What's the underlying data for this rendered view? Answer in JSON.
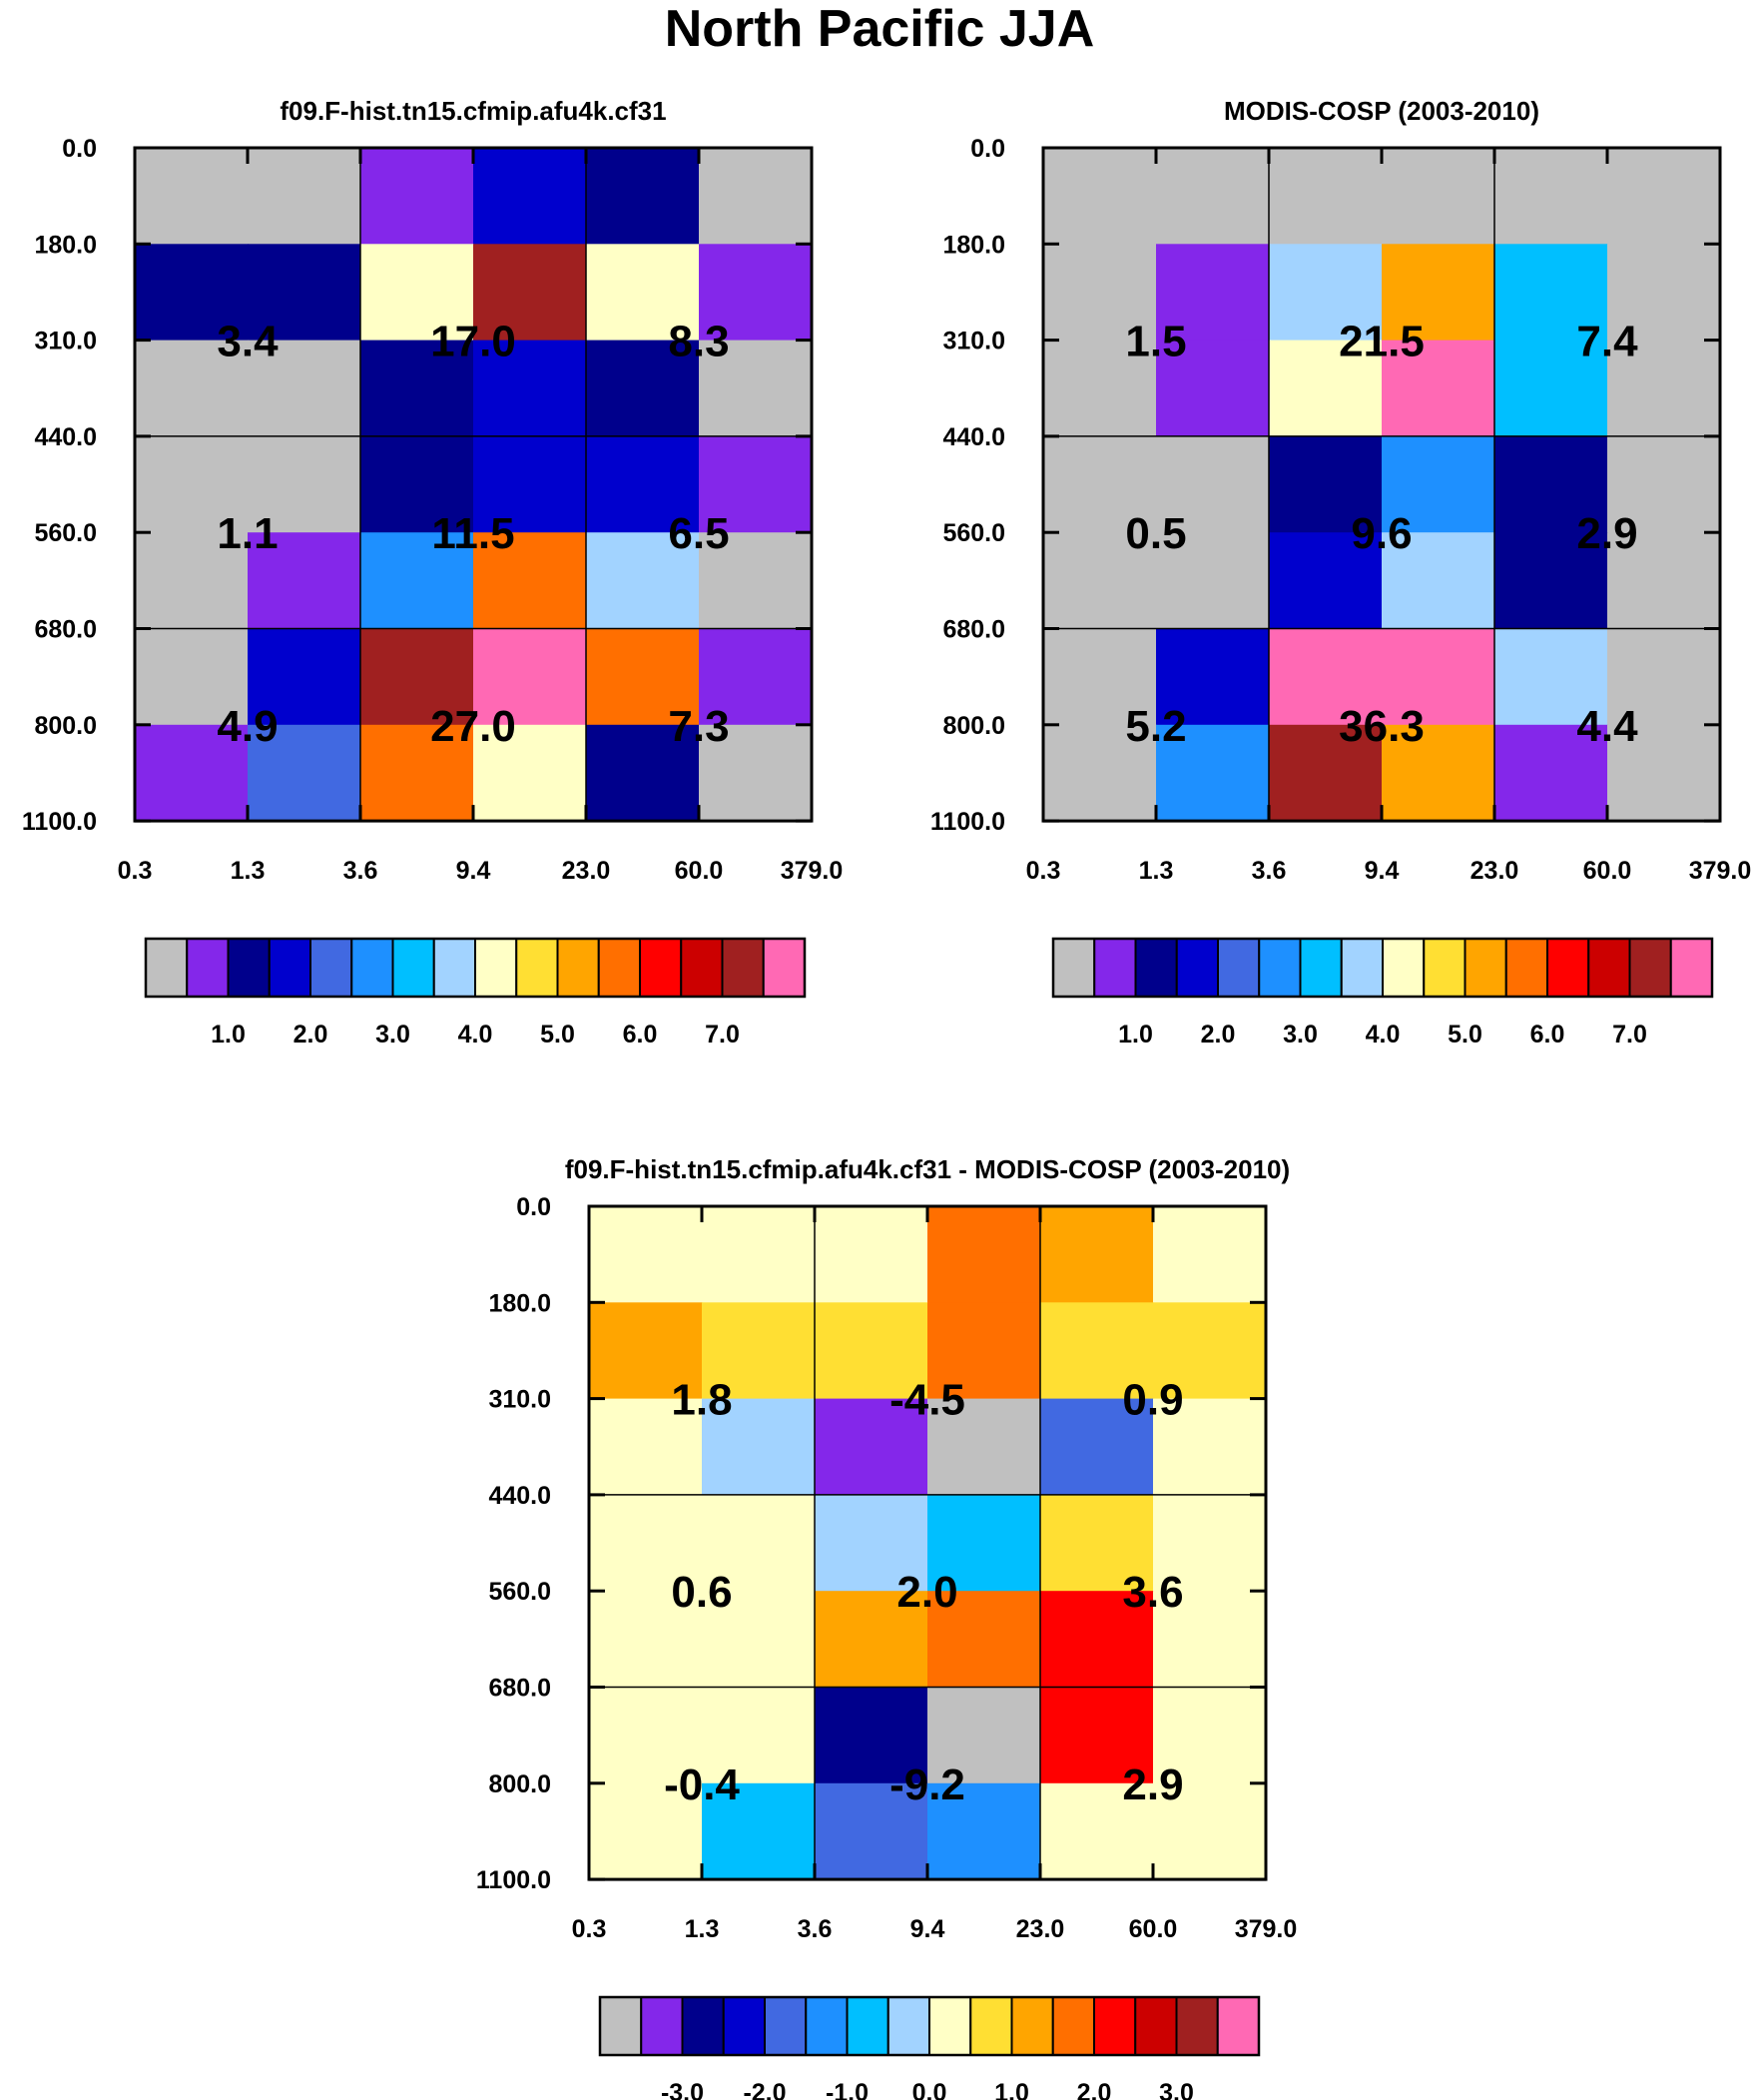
{
  "page_title": "North Pacific JJA",
  "x_tick_labels": [
    "0.3",
    "1.3",
    "3.6",
    "9.4",
    "23.0",
    "60.0",
    "379.0"
  ],
  "y_tick_labels": [
    "0.0",
    "180.0",
    "310.0",
    "440.0",
    "560.0",
    "680.0",
    "800.0",
    "1100.0"
  ],
  "colors": {
    "abs_palette": [
      "#c0c0c0",
      "#8427ea",
      "#00008c",
      "#0000cd",
      "#4169e1",
      "#1e90ff",
      "#00bfff",
      "#a2d3ff",
      "#ffffc6",
      "#ffdf33",
      "#ffa500",
      "#ff6f00",
      "#ff0000",
      "#cc0000",
      "#a02020",
      "#ff69b4"
    ],
    "diff_palette": [
      "#c0c0c0",
      "#8427ea",
      "#00008c",
      "#0000cd",
      "#4169e1",
      "#1e90ff",
      "#00bfff",
      "#a2d3ff",
      "#ffffc6",
      "#ffdf33",
      "#ffa500",
      "#ff6f00",
      "#ff0000",
      "#cc0000",
      "#a02020",
      "#ff69b4"
    ]
  },
  "chart_data": [
    {
      "type": "heatmap",
      "title": "f09.F-hist.tn15.cfmip.afu4k.cf31",
      "x_bins": [
        "0.3",
        "1.3",
        "3.6",
        "9.4",
        "23.0",
        "60.0",
        "379.0"
      ],
      "y_bins": [
        "0.0",
        "180.0",
        "310.0",
        "440.0",
        "560.0",
        "680.0",
        "800.0",
        "1100.0"
      ],
      "cell_color_index": [
        [
          0,
          0,
          1,
          3,
          2,
          0
        ],
        [
          2,
          2,
          8,
          14,
          8,
          1
        ],
        [
          0,
          0,
          2,
          3,
          2,
          0
        ],
        [
          0,
          0,
          2,
          3,
          3,
          1
        ],
        [
          0,
          1,
          5,
          11,
          7,
          0
        ],
        [
          0,
          3,
          14,
          15,
          11,
          1
        ],
        [
          1,
          4,
          11,
          8,
          2,
          0
        ]
      ],
      "group_labels": [
        [
          "3.4",
          "17.0",
          "8.3"
        ],
        [
          "1.1",
          "11.5",
          "6.5"
        ],
        [
          "4.9",
          "27.0",
          "7.3"
        ]
      ],
      "colorbar": {
        "labels": [
          "1.0",
          "2.0",
          "3.0",
          "4.0",
          "5.0",
          "6.0",
          "7.0"
        ]
      }
    },
    {
      "type": "heatmap",
      "title": "MODIS-COSP (2003-2010)",
      "x_bins": [
        "0.3",
        "1.3",
        "3.6",
        "9.4",
        "23.0",
        "60.0",
        "379.0"
      ],
      "y_bins": [
        "0.0",
        "180.0",
        "310.0",
        "440.0",
        "560.0",
        "680.0",
        "800.0",
        "1100.0"
      ],
      "cell_color_index": [
        [
          0,
          0,
          0,
          0,
          0,
          0
        ],
        [
          0,
          1,
          7,
          10,
          6,
          0
        ],
        [
          0,
          1,
          8,
          15,
          6,
          0
        ],
        [
          0,
          0,
          2,
          5,
          2,
          0
        ],
        [
          0,
          0,
          3,
          7,
          2,
          0
        ],
        [
          0,
          3,
          15,
          15,
          7,
          0
        ],
        [
          0,
          5,
          14,
          10,
          1,
          0
        ]
      ],
      "group_labels": [
        [
          "1.5",
          "21.5",
          "7.4"
        ],
        [
          "0.5",
          "9.6",
          "2.9"
        ],
        [
          "5.2",
          "36.3",
          "4.4"
        ]
      ],
      "colorbar": {
        "labels": [
          "1.0",
          "2.0",
          "3.0",
          "4.0",
          "5.0",
          "6.0",
          "7.0"
        ]
      }
    },
    {
      "type": "heatmap",
      "title": "f09.F-hist.tn15.cfmip.afu4k.cf31 - MODIS-COSP (2003-2010)",
      "x_bins": [
        "0.3",
        "1.3",
        "3.6",
        "9.4",
        "23.0",
        "60.0",
        "379.0"
      ],
      "y_bins": [
        "0.0",
        "180.0",
        "310.0",
        "440.0",
        "560.0",
        "680.0",
        "800.0",
        "1100.0"
      ],
      "cell_color_index": [
        [
          8,
          8,
          8,
          11,
          10,
          8
        ],
        [
          10,
          9,
          9,
          11,
          9,
          9
        ],
        [
          8,
          7,
          1,
          0,
          4,
          8
        ],
        [
          8,
          8,
          7,
          6,
          9,
          8
        ],
        [
          8,
          8,
          10,
          11,
          12,
          8
        ],
        [
          8,
          8,
          2,
          0,
          12,
          8
        ],
        [
          8,
          6,
          4,
          5,
          8,
          8
        ]
      ],
      "group_labels": [
        [
          "1.8",
          "-4.5",
          "0.9"
        ],
        [
          "0.6",
          "2.0",
          "3.6"
        ],
        [
          "-0.4",
          "-9.2",
          "2.9"
        ]
      ],
      "colorbar": {
        "labels": [
          "-3.0",
          "-2.0",
          "-1.0",
          "0.0",
          "1.0",
          "2.0",
          "3.0"
        ]
      }
    }
  ]
}
